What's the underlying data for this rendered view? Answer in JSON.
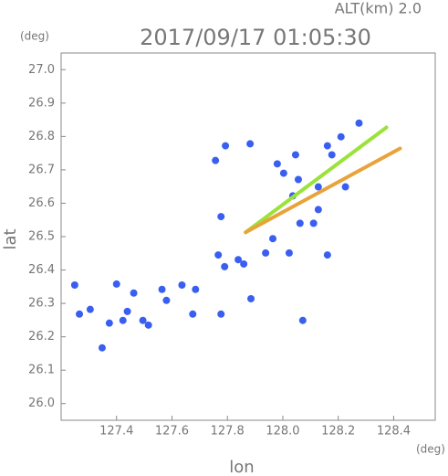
{
  "chart_data": {
    "type": "scatter",
    "header": "ALT(km) 2.0",
    "title": "2017/09/17 01:05:30",
    "y_unit": "(deg)",
    "x_unit": "(deg)",
    "ylabel": "lat",
    "xlabel": "lon",
    "xlim": [
      127.2,
      128.55
    ],
    "ylim": [
      25.95,
      27.05
    ],
    "xticks": [
      127.4,
      127.6,
      127.8,
      {
        "value": 128.0,
        "label": "128.0"
      },
      128.2,
      128.4
    ],
    "yticks": [
      {
        "value": 26.0,
        "label": "26.0"
      },
      26.1,
      26.2,
      26.3,
      26.4,
      26.5,
      26.6,
      26.7,
      26.8,
      26.9,
      {
        "value": 27.0,
        "label": "27.0"
      }
    ],
    "series": [
      {
        "color": "#3a5ff0",
        "line": false,
        "x": [
          127.249,
          127.266,
          127.305,
          127.348,
          127.374,
          127.4,
          127.423,
          127.439,
          127.495,
          127.515,
          127.462,
          127.564,
          127.58,
          127.636,
          127.675,
          127.685,
          127.757,
          127.793,
          127.777,
          127.767,
          127.777,
          127.79,
          127.839,
          127.859,
          127.882,
          127.885,
          127.938,
          127.964,
          127.98,
          128.003,
          128.046,
          128.056,
          128.036,
          128.062,
          128.111,
          128.128,
          128.161,
          128.177,
          128.21,
          128.226,
          128.275,
          128.161,
          128.072,
          128.128,
          128.023
        ],
        "values": [
          26.355,
          26.268,
          26.282,
          26.167,
          26.241,
          26.358,
          26.249,
          26.276,
          26.249,
          26.235,
          26.331,
          26.342,
          26.309,
          26.355,
          26.268,
          26.342,
          26.728,
          26.772,
          26.56,
          26.445,
          26.268,
          26.41,
          26.431,
          26.418,
          26.778,
          26.314,
          26.451,
          26.494,
          26.718,
          26.69,
          26.745,
          26.671,
          26.622,
          26.54,
          26.54,
          26.649,
          26.772,
          26.745,
          26.799,
          26.649,
          26.84,
          26.445,
          26.249,
          26.581,
          26.451
        ]
      },
      {
        "color": "#9be23a",
        "line": true,
        "x": [
          127.866,
          128.374
        ],
        "values": [
          26.513,
          26.827
        ]
      },
      {
        "color": "#e8a33a",
        "line": true,
        "x": [
          127.866,
          128.423
        ],
        "values": [
          26.513,
          26.764
        ]
      }
    ]
  }
}
